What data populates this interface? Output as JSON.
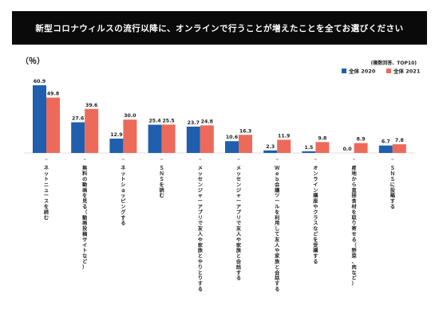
{
  "title": "新型コロナウィルスの流行以降に、オンラインで行うことが増えたことを全てお選びください",
  "chart_data": {
    "type": "bar",
    "unit_label": "（％）",
    "note": "(複数回答、TOP10)",
    "legend_placement": "top-right",
    "ylim": [
      0,
      70
    ],
    "grid": false,
    "categories": [
      "ネットニュースを読む",
      "無料の動画を見る（動画投稿サイトなど）",
      "ネットショッピングする",
      "ＳＮＳを読む",
      "メッセンジャーアプリで友人や家族とやりとりする",
      "メッセンジャーアプリで友人や家族と会話する",
      "Ｗｅｂ会議ツールを利用して友人や家族と会話する",
      "オンライン講座やクラスなどを受講する",
      "産地から直接食材を取り寄せる（野菜、肉など）",
      "ＳＮＳに投稿する"
    ],
    "series": [
      {
        "name": "全体 2020",
        "color": "#1f5fad",
        "values": [
          60.9,
          27.6,
          12.9,
          25.4,
          23.7,
          10.6,
          2.3,
          1.5,
          0.0,
          6.7
        ],
        "labels": [
          "60.9",
          "27.6",
          "12.9",
          "25.4",
          "23.7",
          "10.6",
          "2.3",
          "1.5",
          "0.0",
          "6.7"
        ]
      },
      {
        "name": "全体 2021",
        "color": "#ed6a5a",
        "values": [
          49.8,
          39.6,
          30.0,
          25.5,
          24.8,
          16.3,
          11.9,
          9.8,
          8.9,
          7.8
        ],
        "labels": [
          "49.8",
          "39.6",
          "30.0",
          "25.5",
          "24.8",
          "16.3",
          "11.9",
          "9.8",
          "8.9",
          "7.8"
        ]
      }
    ]
  }
}
